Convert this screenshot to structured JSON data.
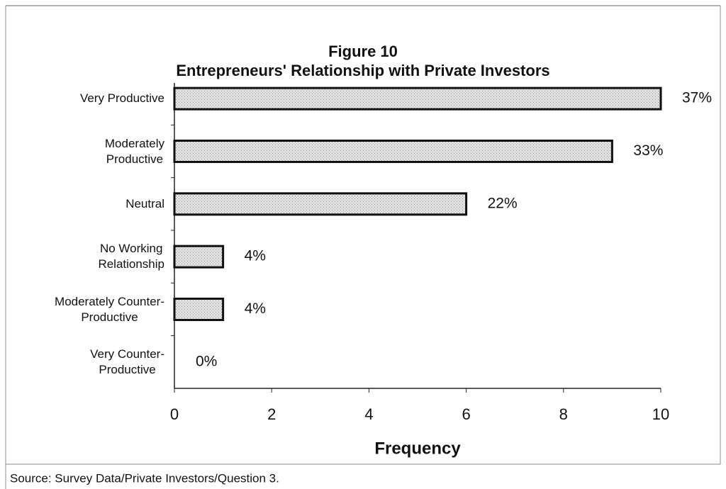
{
  "chart_data": {
    "type": "bar",
    "orientation": "horizontal",
    "title": "Figure 10",
    "subtitle": "Entrepreneurs' Relationship with Private Investors",
    "categories": [
      "Very Productive",
      "Moderately\nProductive",
      "Neutral",
      "No Working\nRelationship",
      "Moderately Counter-\nProductive",
      "Very Counter-\nProductive"
    ],
    "values": [
      10,
      9,
      6,
      1,
      1,
      0
    ],
    "value_labels": [
      "37%",
      "33%",
      "22%",
      "4%",
      "4%",
      "0%"
    ],
    "color": "#d4d4d4",
    "xlim": [
      0,
      10
    ],
    "xticks": [
      0,
      2,
      4,
      6,
      8,
      10
    ],
    "xlabel": "Frequency",
    "source": "Source: Survey Data/Private Investors/Question 3."
  }
}
